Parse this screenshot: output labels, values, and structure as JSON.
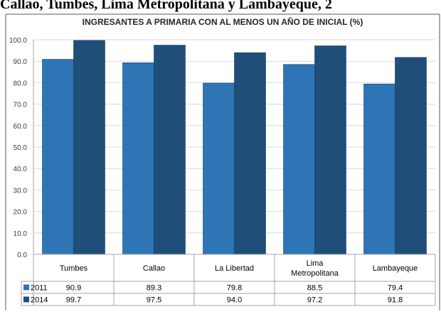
{
  "page": {
    "heading": "Callao, Tumbes, Lima Metropolitana y Lambayeque, 2"
  },
  "colors": {
    "series_2011": "#2e75b6",
    "series_2014": "#1f4e79",
    "grid": "#d9d9d9",
    "table_border": "#a6a6a6",
    "frame": "#595959"
  },
  "chart_data": {
    "type": "bar",
    "title": "INGRESANTES A PRIMARIA CON AL MENOS UN AÑO DE INICIAL (%)",
    "categories": [
      "Tumbes",
      "Callao",
      "La Libertad",
      "Lima Metropolitana",
      "Lambayeque"
    ],
    "category_lines": [
      [
        "Tumbes"
      ],
      [
        "Callao"
      ],
      [
        "La Libertad"
      ],
      [
        "Lima",
        "Metropolitana"
      ],
      [
        "Lambayeque"
      ]
    ],
    "series": [
      {
        "name": "2011",
        "values": [
          90.9,
          89.3,
          79.8,
          88.5,
          79.4
        ]
      },
      {
        "name": "2014",
        "values": [
          99.7,
          97.5,
          94.0,
          97.2,
          91.8
        ]
      }
    ],
    "ylim": [
      0,
      100
    ],
    "yticks": [
      0,
      10,
      20,
      30,
      40,
      50,
      60,
      70,
      80,
      90,
      100
    ],
    "grid": true,
    "legend": "data-table-left"
  }
}
